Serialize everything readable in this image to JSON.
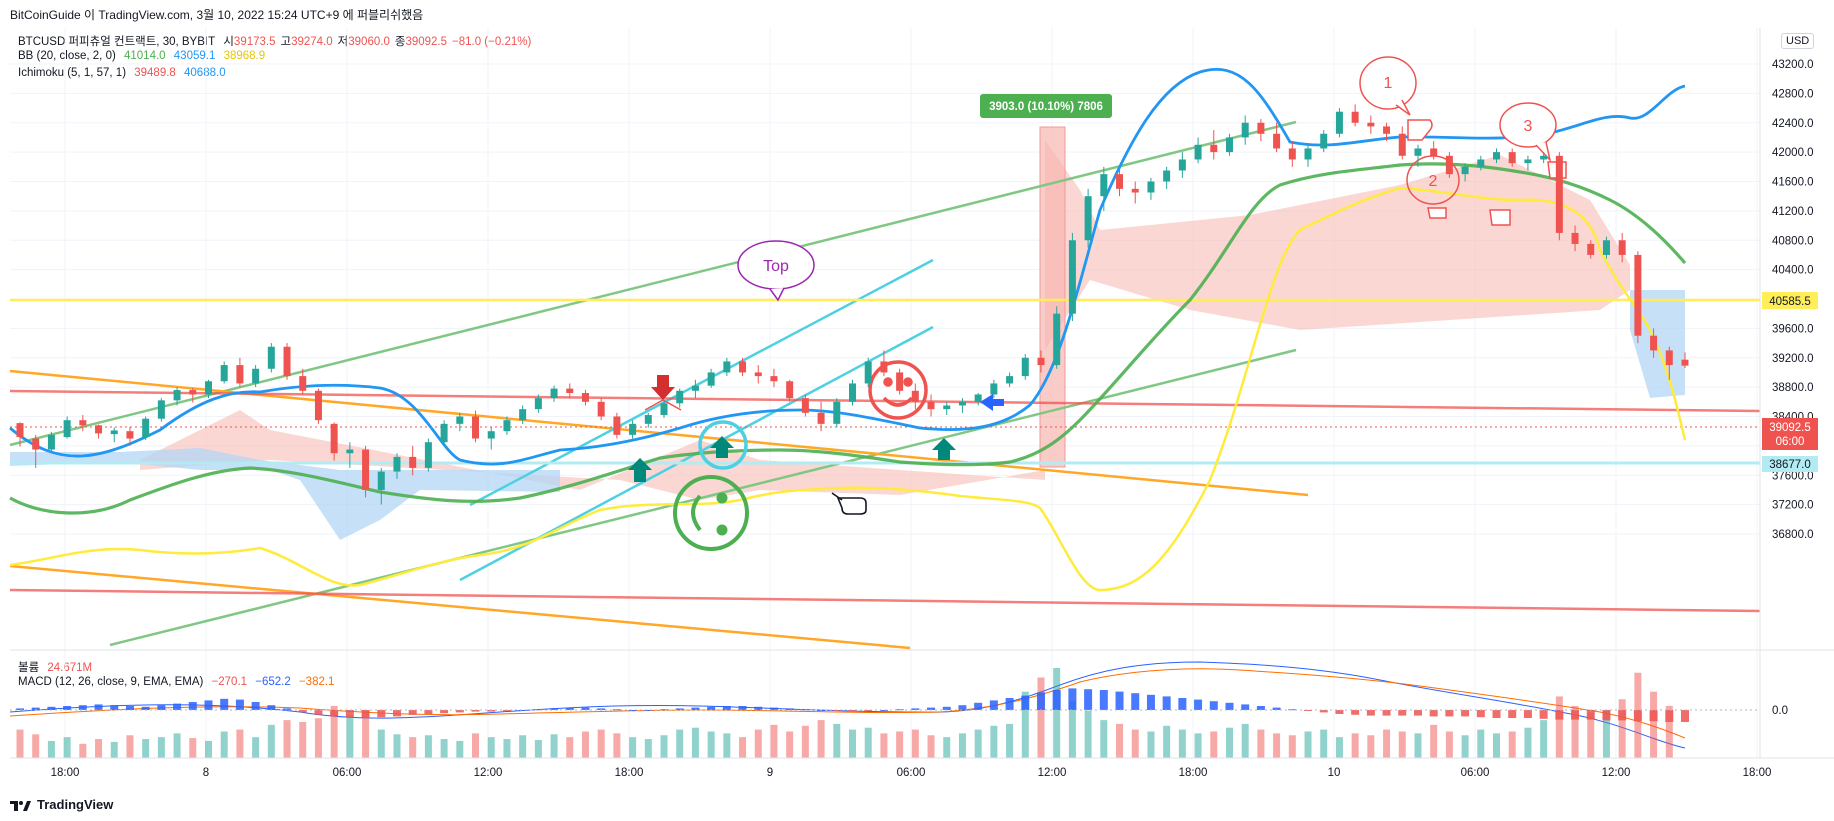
{
  "header": {
    "title": "BitCoinGuide 이 TradingView.com, 3월 10, 2022 15:24 UTC+9 에 퍼블리쉬했음"
  },
  "legend": {
    "symbol": "BTCUSD 퍼피츄얼 컨트랙트, 30, BYBIT",
    "open_label": "시",
    "open": "39173.5",
    "high_label": "고",
    "high": "39274.0",
    "low_label": "저",
    "low": "39060.0",
    "close_label": "종",
    "close": "39092.5",
    "change": "−81.0 (−0.21%)",
    "bb_label": "BB (20, close, 2, 0)",
    "bb_basis": "41014.0",
    "bb_upper": "43059.1",
    "bb_lower": "38968.9",
    "ichimoku_label": "Ichimoku (5, 1, 57, 1)",
    "ichimoku_a": "39489.8",
    "ichimoku_b": "40688.0"
  },
  "volume_legend": {
    "label": "볼륨",
    "value": "24.671M"
  },
  "macd_legend": {
    "label": "MACD (12, 26, close, 9, EMA, EMA)",
    "hist": "−270.1",
    "macd": "−652.2",
    "signal": "−382.1"
  },
  "currency": "USD",
  "footer": {
    "brand": "TradingView"
  },
  "colors": {
    "up": "#26a69a",
    "down": "#ef5350",
    "bb_upper": "#2196f3",
    "bb_basis": "#4caf50",
    "bb_lower": "#ffeb3b",
    "cloud": "#f8b6b1",
    "cloud_blue": "#b3d6f5",
    "horizontal": "#ffee58",
    "resistance": "#ef5350",
    "support": "#b2ebf2"
  },
  "chart_data": {
    "type": "candlestick",
    "y_ticks": [
      43200,
      42800,
      42400,
      42000,
      41600,
      41200,
      40800,
      40400,
      40000,
      39600,
      39200,
      38800,
      38400,
      38000,
      37600,
      37200,
      36800
    ],
    "y_tick_labels": [
      "43200.0",
      "42800.0",
      "42400.0",
      "42000.0",
      "41600.0",
      "41200.0",
      "40800.0",
      "40400.0",
      "40000.0",
      "39600.0",
      "39200.0",
      "38800.0",
      "38400.0",
      "38000.0",
      "37600.0",
      "37200.0",
      "36800.0"
    ],
    "x_tick_labels": [
      "18:00",
      "8",
      "06:00",
      "12:00",
      "18:00",
      "9",
      "06:00",
      "12:00",
      "18:00",
      "10",
      "06:00",
      "12:00",
      "18:00"
    ],
    "price_labels": {
      "level_1": "40585.5",
      "last_price": "39092.5",
      "countdown": "06:00",
      "level_2": "38677.0"
    },
    "macd_axis_label": "0.0",
    "measure_label": "3903.0 (10.10%) 7806",
    "annotations": [
      "Top",
      "1",
      "2",
      "3"
    ],
    "candles_ohlc": [
      [
        38310,
        38320,
        37990,
        38120
      ],
      [
        38100,
        38150,
        37700,
        37950
      ],
      [
        37950,
        38190,
        37900,
        38150
      ],
      [
        38120,
        38400,
        38100,
        38350
      ],
      [
        38350,
        38420,
        38200,
        38280
      ],
      [
        38280,
        38290,
        38100,
        38170
      ],
      [
        38160,
        38250,
        38050,
        38210
      ],
      [
        38200,
        38260,
        38000,
        38100
      ],
      [
        38120,
        38400,
        38080,
        38370
      ],
      [
        38370,
        38650,
        38330,
        38620
      ],
      [
        38620,
        38800,
        38550,
        38760
      ],
      [
        38760,
        38790,
        38590,
        38700
      ],
      [
        38700,
        38900,
        38650,
        38880
      ],
      [
        38880,
        39150,
        38850,
        39100
      ],
      [
        39100,
        39200,
        38800,
        38850
      ],
      [
        38850,
        39100,
        38800,
        39050
      ],
      [
        39050,
        39400,
        39000,
        39350
      ],
      [
        39350,
        39400,
        38900,
        38950
      ],
      [
        38950,
        39050,
        38700,
        38750
      ],
      [
        38750,
        38780,
        38300,
        38350
      ],
      [
        38300,
        38320,
        37800,
        37900
      ],
      [
        37900,
        38050,
        37700,
        37950
      ],
      [
        37950,
        38000,
        37300,
        37400
      ],
      [
        37400,
        37700,
        37200,
        37650
      ],
      [
        37650,
        37900,
        37550,
        37850
      ],
      [
        37850,
        38000,
        37600,
        37700
      ],
      [
        37700,
        38100,
        37650,
        38050
      ],
      [
        38050,
        38350,
        38000,
        38300
      ],
      [
        38300,
        38450,
        38200,
        38400
      ],
      [
        38400,
        38480,
        38050,
        38100
      ],
      [
        38100,
        38250,
        37950,
        38200
      ],
      [
        38200,
        38400,
        38150,
        38350
      ],
      [
        38350,
        38550,
        38300,
        38500
      ],
      [
        38500,
        38700,
        38450,
        38650
      ],
      [
        38650,
        38820,
        38600,
        38780
      ],
      [
        38780,
        38850,
        38650,
        38720
      ],
      [
        38720,
        38760,
        38550,
        38600
      ],
      [
        38600,
        38650,
        38350,
        38400
      ],
      [
        38400,
        38450,
        38100,
        38150
      ],
      [
        38150,
        38350,
        38100,
        38300
      ],
      [
        38300,
        38450,
        38250,
        38420
      ],
      [
        38420,
        38620,
        38380,
        38580
      ],
      [
        38580,
        38780,
        38520,
        38750
      ],
      [
        38750,
        38900,
        38650,
        38820
      ],
      [
        38820,
        39050,
        38790,
        39000
      ],
      [
        39000,
        39200,
        38950,
        39150
      ],
      [
        39150,
        39200,
        38950,
        39000
      ],
      [
        39000,
        39100,
        38850,
        38950
      ],
      [
        38950,
        39050,
        38800,
        38880
      ],
      [
        38880,
        38900,
        38600,
        38650
      ],
      [
        38650,
        38700,
        38400,
        38450
      ],
      [
        38450,
        38600,
        38200,
        38300
      ],
      [
        38300,
        38650,
        38250,
        38600
      ],
      [
        38600,
        38900,
        38550,
        38850
      ],
      [
        38850,
        39200,
        38800,
        39150
      ],
      [
        39150,
        39300,
        38950,
        39000
      ],
      [
        39000,
        39050,
        38700,
        38750
      ],
      [
        38750,
        38850,
        38500,
        38600
      ],
      [
        38600,
        38700,
        38400,
        38500
      ],
      [
        38500,
        38600,
        38420,
        38550
      ],
      [
        38550,
        38650,
        38450,
        38600
      ],
      [
        38600,
        38720,
        38550,
        38700
      ],
      [
        38700,
        38900,
        38650,
        38850
      ],
      [
        38850,
        39000,
        38800,
        38950
      ],
      [
        38950,
        39250,
        38900,
        39200
      ],
      [
        39200,
        39300,
        39000,
        39100
      ],
      [
        39100,
        39900,
        39050,
        39800
      ],
      [
        39800,
        40900,
        39700,
        40800
      ],
      [
        40800,
        41500,
        40700,
        41400
      ],
      [
        41400,
        41800,
        41200,
        41700
      ],
      [
        41700,
        41800,
        41400,
        41500
      ],
      [
        41500,
        41600,
        41300,
        41450
      ],
      [
        41450,
        41650,
        41350,
        41600
      ],
      [
        41600,
        41800,
        41500,
        41750
      ],
      [
        41750,
        42000,
        41650,
        41900
      ],
      [
        41900,
        42200,
        41850,
        42100
      ],
      [
        42100,
        42300,
        41900,
        42000
      ],
      [
        42000,
        42250,
        41950,
        42200
      ],
      [
        42200,
        42500,
        42100,
        42400
      ],
      [
        42400,
        42450,
        42150,
        42250
      ],
      [
        42250,
        42400,
        42000,
        42050
      ],
      [
        42050,
        42150,
        41800,
        41900
      ],
      [
        41900,
        42100,
        41800,
        42050
      ],
      [
        42050,
        42300,
        42000,
        42250
      ],
      [
        42250,
        42600,
        42200,
        42550
      ],
      [
        42550,
        42650,
        42350,
        42400
      ],
      [
        42400,
        42500,
        42250,
        42350
      ],
      [
        42350,
        42400,
        42150,
        42250
      ],
      [
        42250,
        42350,
        41900,
        41950
      ],
      [
        41950,
        42100,
        41800,
        42050
      ],
      [
        42050,
        42150,
        41900,
        41950
      ],
      [
        41950,
        42000,
        41650,
        41700
      ],
      [
        41700,
        41850,
        41600,
        41800
      ],
      [
        41800,
        41950,
        41750,
        41900
      ],
      [
        41900,
        42050,
        41850,
        42000
      ],
      [
        42000,
        42050,
        41800,
        41850
      ],
      [
        41850,
        41950,
        41750,
        41900
      ],
      [
        41900,
        42000,
        41850,
        41950
      ],
      [
        41950,
        42000,
        40800,
        40900
      ],
      [
        40900,
        41000,
        40650,
        40750
      ],
      [
        40750,
        40800,
        40550,
        40600
      ],
      [
        40600,
        40850,
        40550,
        40800
      ],
      [
        40800,
        40900,
        40500,
        40600
      ],
      [
        40600,
        40650,
        39400,
        39500
      ],
      [
        39500,
        39600,
        39200,
        39300
      ],
      [
        39300,
        39350,
        38900,
        39100
      ],
      [
        39173.5,
        39274,
        39060,
        39092.5
      ]
    ],
    "volume": [
      30,
      25,
      18,
      22,
      15,
      20,
      17,
      24,
      20,
      22,
      26,
      21,
      18,
      28,
      30,
      22,
      35,
      40,
      38,
      42,
      55,
      45,
      50,
      30,
      25,
      22,
      24,
      20,
      18,
      26,
      22,
      20,
      24,
      19,
      25,
      22,
      28,
      30,
      26,
      22,
      20,
      24,
      30,
      32,
      28,
      26,
      22,
      30,
      35,
      28,
      34,
      40,
      36,
      30,
      32,
      26,
      28,
      30,
      24,
      22,
      26,
      30,
      34,
      36,
      70,
      85,
      95,
      60,
      50,
      40,
      36,
      30,
      28,
      34,
      30,
      26,
      28,
      32,
      36,
      30,
      26,
      24,
      28,
      30,
      22,
      26,
      24,
      30,
      28,
      26,
      35,
      28,
      24,
      30,
      26,
      28,
      32,
      40,
      65,
      55,
      48,
      50,
      62,
      90,
      70,
      55
    ],
    "macd_hist": [
      2,
      3,
      4,
      5,
      6,
      7,
      6,
      5,
      4,
      6,
      8,
      10,
      12,
      14,
      13,
      10,
      6,
      2,
      -3,
      -6,
      -8,
      -9,
      -10,
      -9,
      -8,
      -6,
      -5,
      -4,
      -3,
      -2,
      -2,
      -1,
      0,
      1,
      2,
      3,
      3,
      2,
      1,
      0,
      0,
      1,
      2,
      3,
      4,
      5,
      5,
      4,
      3,
      2,
      1,
      0,
      -1,
      -2,
      -1,
      0,
      1,
      2,
      3,
      4,
      6,
      9,
      12,
      15,
      18,
      22,
      25,
      27,
      26,
      25,
      23,
      21,
      19,
      17,
      15,
      13,
      11,
      9,
      7,
      5,
      3,
      1,
      -1,
      -3,
      -5,
      -6,
      -7,
      -7,
      -7,
      -7,
      -8,
      -8,
      -8,
      -9,
      -10,
      -10,
      -10,
      -11,
      -12,
      -12,
      -12,
      -13,
      -13,
      -14,
      -14,
      -15,
      -15
    ]
  }
}
